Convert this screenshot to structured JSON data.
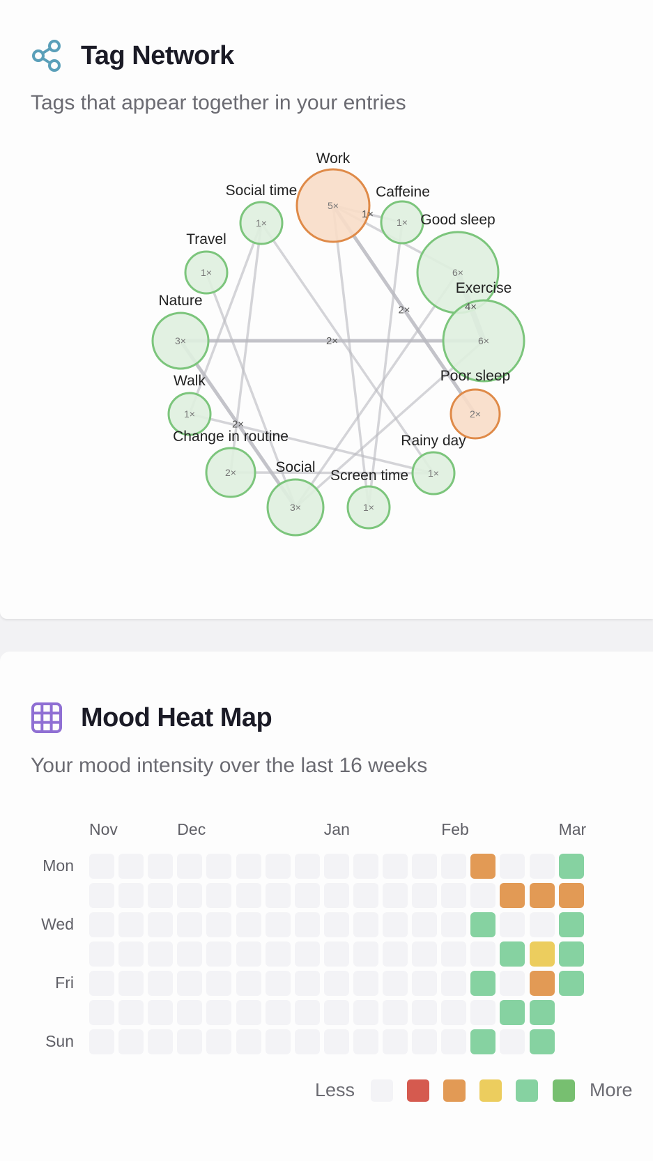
{
  "tag_network": {
    "title": "Tag Network",
    "subtitle": "Tags that appear together in your entries",
    "accent": "#5a9fb9",
    "nodes": [
      {
        "id": "work",
        "label": "Work",
        "count": "5×",
        "tone": "orange"
      },
      {
        "id": "caffeine",
        "label": "Caffeine",
        "count": "1×",
        "tone": "green"
      },
      {
        "id": "good_sleep",
        "label": "Good sleep",
        "count": "6×",
        "tone": "green"
      },
      {
        "id": "exercise",
        "label": "Exercise",
        "count": "6×",
        "tone": "green"
      },
      {
        "id": "poor_sleep",
        "label": "Poor sleep",
        "count": "2×",
        "tone": "orange"
      },
      {
        "id": "rainy_day",
        "label": "Rainy day",
        "count": "1×",
        "tone": "green"
      },
      {
        "id": "screen_time",
        "label": "Screen time",
        "count": "1×",
        "tone": "green"
      },
      {
        "id": "social",
        "label": "Social",
        "count": "3×",
        "tone": "green"
      },
      {
        "id": "change_routine",
        "label": "Change in routine",
        "count": "2×",
        "tone": "green"
      },
      {
        "id": "walk",
        "label": "Walk",
        "count": "1×",
        "tone": "green"
      },
      {
        "id": "nature",
        "label": "Nature",
        "count": "3×",
        "tone": "green"
      },
      {
        "id": "travel",
        "label": "Travel",
        "count": "1×",
        "tone": "green"
      },
      {
        "id": "social_time",
        "label": "Social time",
        "count": "1×",
        "tone": "green"
      }
    ],
    "edges": [
      {
        "from": "work",
        "to": "caffeine",
        "weight": 1,
        "label": "1×"
      },
      {
        "from": "work",
        "to": "good_sleep",
        "weight": 1,
        "label": ""
      },
      {
        "from": "work",
        "to": "poor_sleep",
        "weight": 2,
        "label": "2×"
      },
      {
        "from": "work",
        "to": "screen_time",
        "weight": 1,
        "label": ""
      },
      {
        "from": "caffeine",
        "to": "screen_time",
        "weight": 1,
        "label": ""
      },
      {
        "from": "good_sleep",
        "to": "exercise",
        "weight": 4,
        "label": "4×"
      },
      {
        "from": "good_sleep",
        "to": "social",
        "weight": 1,
        "label": ""
      },
      {
        "from": "exercise",
        "to": "nature",
        "weight": 2,
        "label": "2×"
      },
      {
        "from": "exercise",
        "to": "social",
        "weight": 1,
        "label": ""
      },
      {
        "from": "social_time",
        "to": "rainy_day",
        "weight": 1,
        "label": ""
      },
      {
        "from": "social_time",
        "to": "walk",
        "weight": 1,
        "label": ""
      },
      {
        "from": "social_time",
        "to": "change_routine",
        "weight": 1,
        "label": ""
      },
      {
        "from": "travel",
        "to": "social",
        "weight": 1,
        "label": ""
      },
      {
        "from": "nature",
        "to": "social",
        "weight": 2,
        "label": "2×"
      },
      {
        "from": "walk",
        "to": "rainy_day",
        "weight": 1,
        "label": ""
      },
      {
        "from": "change_routine",
        "to": "rainy_day",
        "weight": 1,
        "label": ""
      }
    ],
    "colors": {
      "green_stroke": "#7cc57c",
      "green_fill": "#dff0df",
      "orange_stroke": "#df8a48",
      "orange_fill": "#f8ddc8",
      "edge": "#b9b9bf"
    }
  },
  "heatmap": {
    "title": "Mood Heat Map",
    "subtitle": "Your mood intensity over the last 16 weeks",
    "accent": "#8f6fd3",
    "months": [
      {
        "label": "Nov",
        "week": 0
      },
      {
        "label": "Dec",
        "week": 3
      },
      {
        "label": "Jan",
        "week": 8
      },
      {
        "label": "Feb",
        "week": 12
      },
      {
        "label": "Mar",
        "week": 16
      }
    ],
    "day_labels": [
      "Mon",
      "",
      "Wed",
      "",
      "Fri",
      "",
      "Sun"
    ],
    "levels": {
      "0": "#f3f3f6",
      "1": "#d55a4f",
      "2": "#e29a55",
      "3": "#eccd5e",
      "4": "#86d2a1",
      "5": "#77bf70"
    },
    "grid": [
      [
        0,
        0,
        0,
        0,
        0,
        0,
        0,
        0,
        0,
        0,
        0,
        0,
        0,
        2,
        0,
        0,
        4
      ],
      [
        0,
        0,
        0,
        0,
        0,
        0,
        0,
        0,
        0,
        0,
        0,
        0,
        0,
        0,
        2,
        2,
        2
      ],
      [
        0,
        0,
        0,
        0,
        0,
        0,
        0,
        0,
        0,
        0,
        0,
        0,
        0,
        4,
        0,
        0,
        4
      ],
      [
        0,
        0,
        0,
        0,
        0,
        0,
        0,
        0,
        0,
        0,
        0,
        0,
        0,
        0,
        4,
        3,
        4
      ],
      [
        0,
        0,
        0,
        0,
        0,
        0,
        0,
        0,
        0,
        0,
        0,
        0,
        0,
        4,
        0,
        2,
        4
      ],
      [
        0,
        0,
        0,
        0,
        0,
        0,
        0,
        0,
        0,
        0,
        0,
        0,
        0,
        0,
        4,
        4,
        null
      ],
      [
        0,
        0,
        0,
        0,
        0,
        0,
        0,
        0,
        0,
        0,
        0,
        0,
        0,
        4,
        0,
        4,
        null
      ]
    ],
    "legend": {
      "less": "Less",
      "more": "More",
      "levels": [
        0,
        1,
        2,
        3,
        4,
        5
      ]
    }
  }
}
